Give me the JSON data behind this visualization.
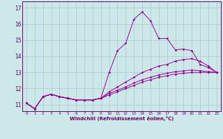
{
  "xlabel": "Windchill (Refroidissement éolien,°C)",
  "bg_color": "#cde8e8",
  "grid_color": "#b0cccc",
  "line_color": "#990099",
  "xlim": [
    -0.5,
    23.5
  ],
  "ylim": [
    10.6,
    17.4
  ],
  "yticks": [
    11,
    12,
    13,
    14,
    15,
    16,
    17
  ],
  "xticks": [
    0,
    1,
    2,
    3,
    4,
    5,
    6,
    7,
    8,
    9,
    10,
    11,
    12,
    13,
    14,
    15,
    16,
    17,
    18,
    19,
    20,
    21,
    22,
    23
  ],
  "series": [
    [
      11.1,
      10.75,
      11.5,
      11.65,
      11.5,
      11.4,
      11.3,
      11.3,
      11.3,
      11.4,
      13.0,
      14.35,
      14.8,
      16.3,
      16.75,
      16.2,
      15.1,
      15.1,
      14.4,
      14.45,
      14.35,
      13.5,
      13.3,
      13.0
    ],
    [
      11.1,
      10.75,
      11.5,
      11.65,
      11.5,
      11.4,
      11.3,
      11.3,
      11.3,
      11.4,
      11.8,
      12.1,
      12.4,
      12.7,
      13.0,
      13.2,
      13.4,
      13.5,
      13.7,
      13.8,
      13.85,
      13.7,
      13.4,
      13.0
    ],
    [
      11.1,
      10.75,
      11.5,
      11.65,
      11.5,
      11.4,
      11.3,
      11.3,
      11.3,
      11.4,
      11.7,
      11.9,
      12.1,
      12.35,
      12.55,
      12.7,
      12.85,
      12.95,
      13.05,
      13.1,
      13.15,
      13.1,
      13.05,
      13.0
    ],
    [
      11.1,
      10.75,
      11.5,
      11.65,
      11.5,
      11.4,
      11.3,
      11.3,
      11.3,
      11.4,
      11.6,
      11.8,
      12.0,
      12.2,
      12.4,
      12.55,
      12.7,
      12.8,
      12.9,
      12.95,
      13.0,
      13.0,
      13.0,
      13.0
    ]
  ]
}
